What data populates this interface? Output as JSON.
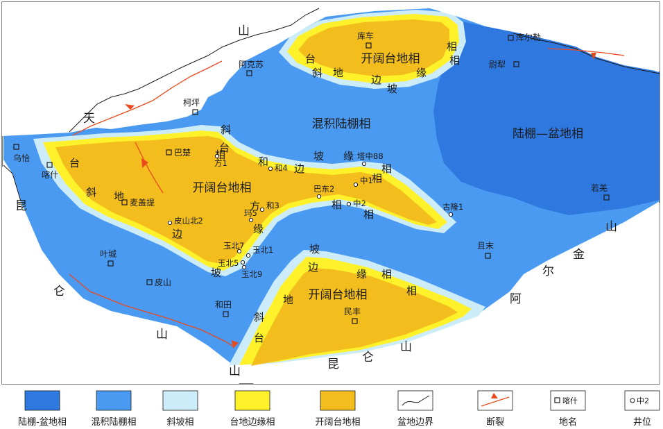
{
  "colors": {
    "basin": "#2f78e0",
    "shelf": "#4b9af2",
    "slope": "#ccecf9",
    "margin": "#fff12a",
    "open_platform": "#f3bd1e",
    "fault": "#e84a1e",
    "boundary": "#1a1a1a"
  },
  "facies_labels": {
    "shelf_mixed": "混积陆棚相",
    "basin": "陆棚—盆地相",
    "open_west": "开阔台地相",
    "open_north": "开阔台地相",
    "open_south": "开阔台地相"
  },
  "margin_slope_chars": {
    "west_top": [
      "斜",
      "台",
      "方",
      "和",
      "边",
      "坡",
      "缘",
      "相"
    ],
    "west_left": [
      "台",
      "斜",
      "地"
    ],
    "west_bottom": [
      "边",
      "缘",
      "坡"
    ],
    "north_left": [
      "台",
      "斜",
      "地",
      "边",
      "坡",
      "缘"
    ],
    "north_right": [
      "相",
      "相"
    ],
    "east_spur": [
      "相",
      "相",
      "相",
      "相"
    ],
    "south_left": [
      "坡",
      "边",
      "地",
      "斜",
      "台"
    ],
    "south_right": [
      "缘",
      "相",
      "相"
    ]
  },
  "mountains": [
    "天",
    "山",
    "昆",
    "仑",
    "山",
    "山",
    "金",
    "尔",
    "阿",
    "山",
    "昆",
    "仑",
    "山"
  ],
  "places": [
    "乌恰",
    "喀什",
    "巴楚",
    "麦盖提",
    "阿克苏",
    "柯坪",
    "库车",
    "库尔勒",
    "尉犁",
    "若羌",
    "且末",
    "叶城",
    "皮山",
    "和田",
    "民丰"
  ],
  "wells": [
    "方1",
    "和4",
    "塔中88",
    "中1",
    "巴东2",
    "中2",
    "和3",
    "玛5",
    "皮山北2",
    "玉北7",
    "玉北1",
    "玉北5",
    "玉北9",
    "古隆1"
  ],
  "legend": [
    "陆棚-盆地相",
    "混积陆棚相",
    "斜坡相",
    "台地边缘相",
    "开阔台地相",
    "盆地边界",
    "断裂",
    "地名",
    "井位"
  ],
  "legend_samples": {
    "place": "喀什",
    "well": "中2"
  }
}
